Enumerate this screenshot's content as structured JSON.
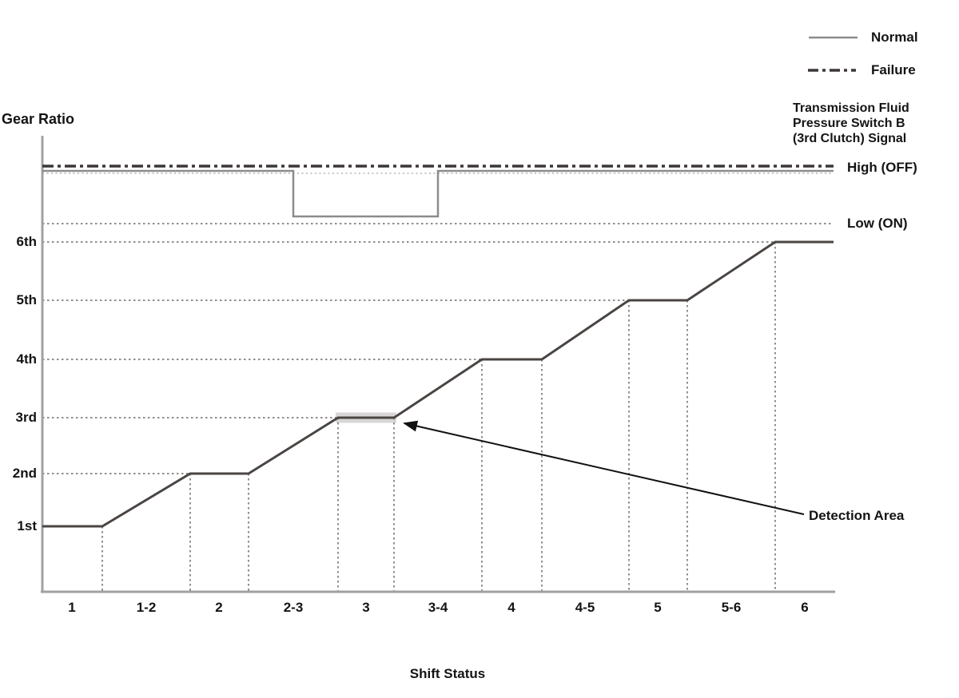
{
  "colors": {
    "normal_line": "#8e8b8b",
    "failure_line": "#3b3735",
    "gear_trace": "#4a4543",
    "grid_dotted": "#908e8e",
    "grid_faint": "#b5b3b3",
    "axis_line": "#a2a0a0",
    "detection_highlight": "#d8d6d6",
    "annotation": "#111111"
  },
  "legend": {
    "normal_label": "Normal",
    "failure_label": "Failure"
  },
  "signal_title": "Transmission Fluid\nPressure Switch B\n(3rd Clutch) Signal",
  "axis": {
    "y_title": "Gear Ratio",
    "x_title": "Shift Status",
    "gear_labels_top_to_bottom": [
      "6th",
      "5th",
      "4th",
      "3rd",
      "2nd",
      "1st"
    ],
    "shift_labels": [
      "1",
      "1-2",
      "2",
      "2-3",
      "3",
      "3-4",
      "4",
      "4-5",
      "5",
      "5-6",
      "6"
    ],
    "high_label": "High (OFF)",
    "low_label": "Low (ON)"
  },
  "annotation": {
    "detection_label": "Detection Area",
    "target_region": "3",
    "target_gear": "3rd"
  },
  "chart_data": {
    "type": "line",
    "title": "",
    "xlabel": "Shift Status",
    "ylabel": "Gear Ratio",
    "x_categories": [
      "1",
      "1-2",
      "2",
      "2-3",
      "3",
      "3-4",
      "4",
      "4-5",
      "5",
      "5-6",
      "6"
    ],
    "y_categories": [
      "1st",
      "2nd",
      "3rd",
      "4th",
      "5th",
      "6th"
    ],
    "signal_levels": [
      "High (OFF)",
      "Low (ON)"
    ],
    "grid": "dotted horizontal lines at each gear level and at Low (ON); dotted vertical lines at every shift-region boundary",
    "legend_position": "top-right",
    "series": [
      {
        "name": "Gear Ratio",
        "style": "solid-dark-stair",
        "gear_at_region_boundaries": [
          1,
          1,
          2,
          2,
          3,
          3,
          4,
          4,
          5,
          5,
          6,
          6
        ],
        "note": "holds gear during numbered regions (1,2,3,4,5,6), ramps up during hyphenated shift regions (1-2, 2-3, 3-4, 4-5, 5-6)"
      },
      {
        "name": "Normal",
        "style": "solid-gray",
        "level": "High (OFF)",
        "low_interval": {
          "from_region": "2-3",
          "to_region": "3-4"
        },
        "note": "3rd clutch pressure switch signal drops to Low (ON) midway through the 2-3 shift and returns to High (OFF) midway through the 3-4 shift"
      },
      {
        "name": "Failure",
        "style": "dash-dot",
        "level": "High (OFF)",
        "low_interval": null,
        "note": "signal stays High (OFF) for the entire shift sequence"
      }
    ],
    "annotations": [
      {
        "label": "Detection Area",
        "shape": "shaded band with arrow",
        "location": "3rd-gear plateau (region 3)"
      }
    ]
  }
}
